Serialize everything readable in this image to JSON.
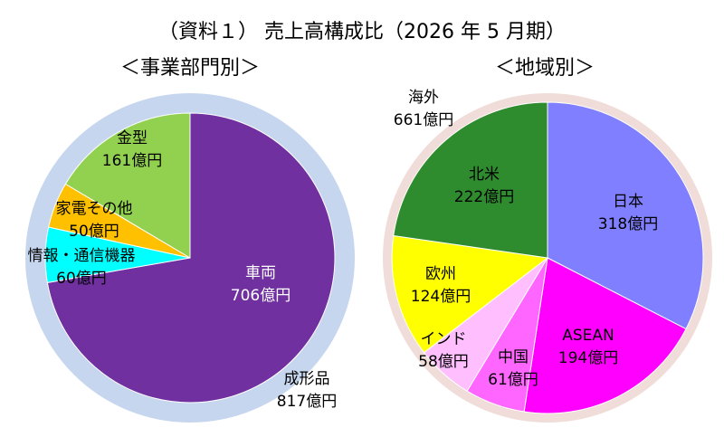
{
  "title": "（資料１） 売上高構成比（2026 年 5 月期）",
  "colors": {
    "outer_ring_segment": "#c6d6ee",
    "outer_ring_region": "#f0dcd8",
    "purple": "#7030a0",
    "green_light": "#92d050",
    "orange": "#ffc000",
    "cyan": "#00ffff",
    "blue": "#7f7fff",
    "magenta": "#ff00ff",
    "pink": "#ffbfff",
    "yellow": "#ffff00",
    "green_dark": "#2e8b2e",
    "outline": "#ffffff"
  },
  "chart_data": [
    {
      "type": "pie",
      "subtitle": "＜事業部門別＞",
      "slices": [
        {
          "label": "車両",
          "value_text": "706億円",
          "value": 706,
          "color": "#7030a0",
          "label_color": "#ffffff"
        },
        {
          "label": "情報・通信機器",
          "value_text": "60億円",
          "value": 60,
          "color": "#00ffff",
          "label_color": "#000000"
        },
        {
          "label": "家電その他",
          "value_text": "50億円",
          "value": 50,
          "color": "#ffc000",
          "label_color": "#000000"
        },
        {
          "label": "金型",
          "value_text": "161億円",
          "value": 161,
          "color": "#92d050",
          "label_color": "#000000"
        }
      ],
      "outer": {
        "label": "成形品",
        "value_text": "817億円",
        "value": 817,
        "color": "#c6d6ee"
      }
    },
    {
      "type": "pie",
      "subtitle": "＜地域別＞",
      "slices": [
        {
          "label": "日本",
          "value_text": "318億円",
          "value": 318,
          "color": "#7f7fff",
          "label_color": "#000000"
        },
        {
          "label": "ASEAN",
          "value_text": "194億円",
          "value": 194,
          "color": "#ff00ff",
          "label_color": "#000000"
        },
        {
          "label": "中国",
          "value_text": "61億円",
          "value": 61,
          "color": "#ff66ff",
          "label_color": "#000000"
        },
        {
          "label": "インド",
          "value_text": "58億円",
          "value": 58,
          "color": "#ffbfff",
          "label_color": "#000000"
        },
        {
          "label": "欧州",
          "value_text": "124億円",
          "value": 124,
          "color": "#ffff00",
          "label_color": "#000000"
        },
        {
          "label": "北米",
          "value_text": "222億円",
          "value": 222,
          "color": "#2e8b2e",
          "label_color": "#000000"
        }
      ],
      "outer": {
        "label": "海外",
        "value_text": "661億円",
        "value": 661,
        "color": "#f0dcd8"
      }
    }
  ]
}
